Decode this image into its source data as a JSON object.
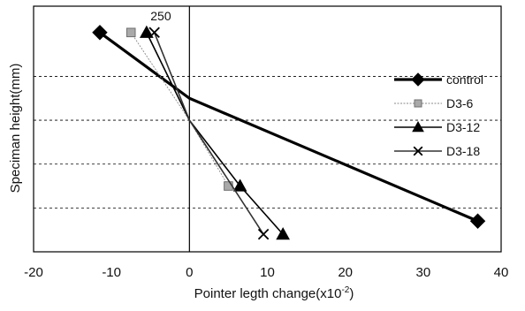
{
  "chart_data": {
    "type": "line",
    "title": "",
    "xlabel": "Pointer legth change(x10",
    "xlabel_superscript": "-2",
    "xlabel_suffix": ")",
    "ylabel": "Speciman height(mm)",
    "xlim": [
      -20,
      40
    ],
    "ylim": [
      0,
      280
    ],
    "xticks": [
      -20,
      -10,
      0,
      10,
      20,
      30,
      40
    ],
    "ygrid": [
      50,
      100,
      150,
      200
    ],
    "grid_style": "dashed horizontal",
    "annotation": {
      "text": "250",
      "x": -5,
      "y": 260
    },
    "legend_position": "right",
    "series": [
      {
        "name": "control",
        "marker": "diamond",
        "color": "#000000",
        "points": [
          {
            "x": -11.5,
            "y": 250
          },
          {
            "x": 0,
            "y": 175
          },
          {
            "x": 37,
            "y": 35
          }
        ]
      },
      {
        "name": "D3-6",
        "marker": "square",
        "color": "#8a8a8a",
        "points": [
          {
            "x": -7.5,
            "y": 250
          },
          {
            "x": 0,
            "y": 150
          },
          {
            "x": 5,
            "y": 75
          }
        ]
      },
      {
        "name": "D3-12",
        "marker": "triangle",
        "color": "#000000",
        "points": [
          {
            "x": -5.5,
            "y": 250
          },
          {
            "x": 0,
            "y": 150
          },
          {
            "x": 6.5,
            "y": 75
          },
          {
            "x": 12,
            "y": 20
          }
        ]
      },
      {
        "name": "D3-18",
        "marker": "x",
        "color": "#333333",
        "points": [
          {
            "x": -4.5,
            "y": 250
          },
          {
            "x": 0,
            "y": 150
          },
          {
            "x": 9.5,
            "y": 20
          }
        ]
      }
    ]
  }
}
